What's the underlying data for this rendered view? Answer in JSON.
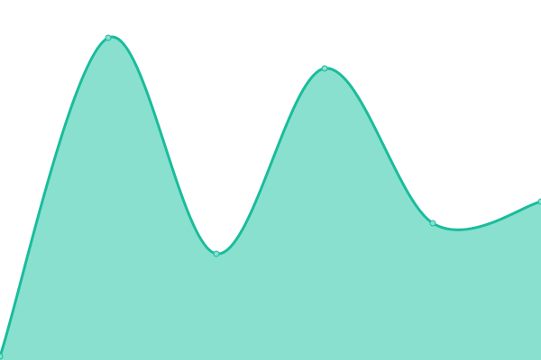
{
  "chart_data": {
    "type": "area",
    "x": [
      0,
      1,
      2,
      3,
      4,
      5
    ],
    "values": [
      1,
      89.5,
      29.5,
      81,
      38,
      44
    ],
    "ylim": [
      0,
      100
    ],
    "xlim": [
      0,
      5
    ],
    "curve": "smooth",
    "grid": false,
    "axes_visible": false,
    "legend": "none",
    "colors": {
      "fill": "#89e0cf",
      "line": "#1abc9c",
      "marker_fill": "#89e0cf",
      "marker_stroke": "#1abc9c"
    }
  }
}
